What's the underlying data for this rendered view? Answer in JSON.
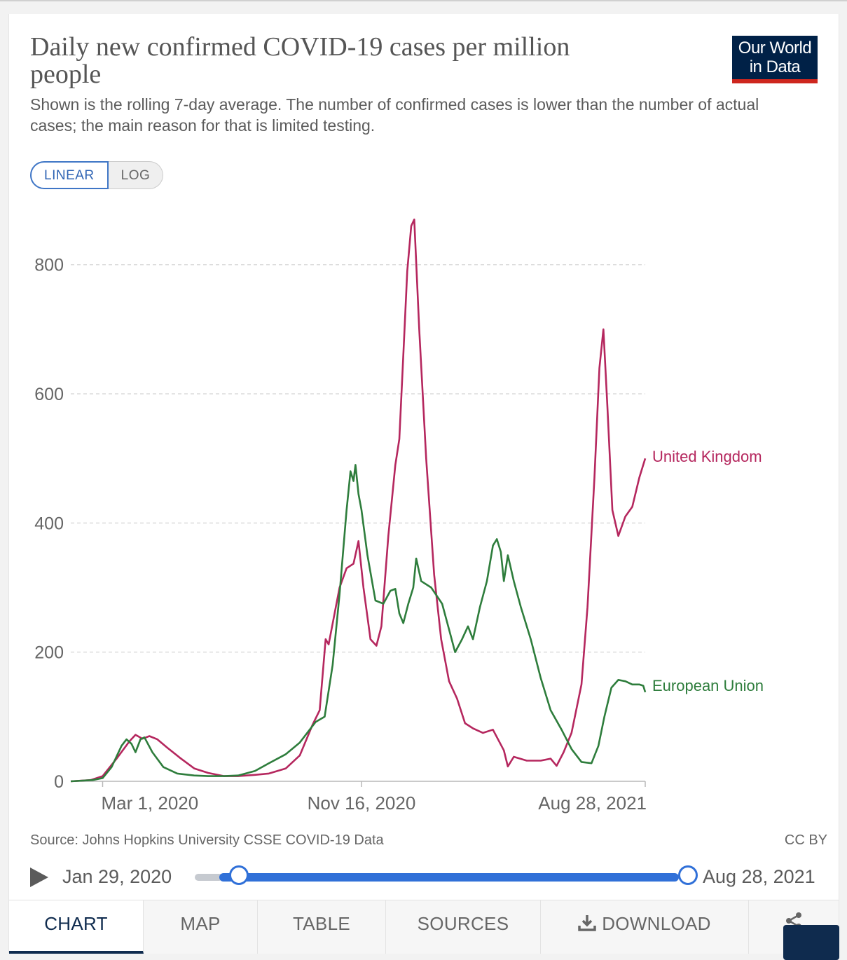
{
  "header": {
    "title": "Daily new confirmed COVID-19 cases per million people",
    "subtitle": "Shown is the rolling 7-day average. The number of confirmed cases is lower than the number of actual cases; the main reason for that is limited testing.",
    "logo_line1": "Our World",
    "logo_line2": "in Data"
  },
  "scale_toggle": {
    "linear_label": "LINEAR",
    "log_label": "LOG",
    "selected": "LINEAR"
  },
  "chart_data": {
    "type": "line",
    "x_axis": {
      "start": "2020-01-29",
      "end": "2021-08-28",
      "tick_labels": [
        "Mar 1, 2020",
        "Nov 16, 2020",
        "Aug 28, 2021"
      ],
      "tick_dates": [
        "2020-03-01",
        "2020-11-16",
        "2021-08-28"
      ]
    },
    "y_axis": {
      "ylim": [
        0,
        870
      ],
      "ticks": [
        0,
        200,
        400,
        600,
        800
      ]
    },
    "grid": "horizontal dashed",
    "legend": "line-end labels at right",
    "colors": {
      "United Kingdom": "#b5275e",
      "European Union": "#2e7d3c"
    },
    "series": [
      {
        "name": "United Kingdom",
        "points": [
          [
            "2020-01-29",
            0
          ],
          [
            "2020-02-18",
            2
          ],
          [
            "2020-03-01",
            8
          ],
          [
            "2020-03-15",
            35
          ],
          [
            "2020-03-28",
            62
          ],
          [
            "2020-04-03",
            72
          ],
          [
            "2020-04-10",
            66
          ],
          [
            "2020-04-17",
            70
          ],
          [
            "2020-04-25",
            65
          ],
          [
            "2020-05-05",
            52
          ],
          [
            "2020-05-18",
            36
          ],
          [
            "2020-06-01",
            20
          ],
          [
            "2020-06-15",
            13
          ],
          [
            "2020-07-01",
            8
          ],
          [
            "2020-07-15",
            8
          ],
          [
            "2020-08-01",
            10
          ],
          [
            "2020-08-15",
            12
          ],
          [
            "2020-09-01",
            20
          ],
          [
            "2020-09-15",
            40
          ],
          [
            "2020-09-28",
            88
          ],
          [
            "2020-10-05",
            110
          ],
          [
            "2020-10-11",
            220
          ],
          [
            "2020-10-14",
            212
          ],
          [
            "2020-10-25",
            300
          ],
          [
            "2020-11-01",
            330
          ],
          [
            "2020-11-08",
            337
          ],
          [
            "2020-11-13",
            372
          ],
          [
            "2020-11-18",
            300
          ],
          [
            "2020-11-25",
            220
          ],
          [
            "2020-12-01",
            210
          ],
          [
            "2020-12-06",
            240
          ],
          [
            "2020-12-13",
            380
          ],
          [
            "2020-12-20",
            490
          ],
          [
            "2020-12-24",
            530
          ],
          [
            "2020-12-28",
            660
          ],
          [
            "2021-01-01",
            790
          ],
          [
            "2021-01-05",
            860
          ],
          [
            "2021-01-08",
            870
          ],
          [
            "2021-01-13",
            700
          ],
          [
            "2021-01-20",
            500
          ],
          [
            "2021-01-28",
            320
          ],
          [
            "2021-02-04",
            220
          ],
          [
            "2021-02-12",
            155
          ],
          [
            "2021-02-20",
            128
          ],
          [
            "2021-02-28",
            90
          ],
          [
            "2021-03-08",
            82
          ],
          [
            "2021-03-18",
            75
          ],
          [
            "2021-03-28",
            80
          ],
          [
            "2021-04-08",
            48
          ],
          [
            "2021-04-12",
            23
          ],
          [
            "2021-04-18",
            38
          ],
          [
            "2021-05-01",
            32
          ],
          [
            "2021-05-15",
            32
          ],
          [
            "2021-05-25",
            35
          ],
          [
            "2021-05-31",
            24
          ],
          [
            "2021-06-07",
            45
          ],
          [
            "2021-06-15",
            75
          ],
          [
            "2021-06-25",
            150
          ],
          [
            "2021-07-01",
            270
          ],
          [
            "2021-07-08",
            470
          ],
          [
            "2021-07-13",
            640
          ],
          [
            "2021-07-17",
            700
          ],
          [
            "2021-07-21",
            580
          ],
          [
            "2021-07-26",
            420
          ],
          [
            "2021-08-01",
            380
          ],
          [
            "2021-08-08",
            410
          ],
          [
            "2021-08-15",
            425
          ],
          [
            "2021-08-22",
            470
          ],
          [
            "2021-08-28",
            500
          ]
        ]
      },
      {
        "name": "European Union",
        "points": [
          [
            "2020-01-29",
            0
          ],
          [
            "2020-02-20",
            2
          ],
          [
            "2020-03-01",
            5
          ],
          [
            "2020-03-10",
            22
          ],
          [
            "2020-03-20",
            55
          ],
          [
            "2020-03-25",
            65
          ],
          [
            "2020-03-30",
            58
          ],
          [
            "2020-04-03",
            45
          ],
          [
            "2020-04-08",
            65
          ],
          [
            "2020-04-12",
            68
          ],
          [
            "2020-04-20",
            45
          ],
          [
            "2020-05-01",
            22
          ],
          [
            "2020-05-15",
            12
          ],
          [
            "2020-06-01",
            9
          ],
          [
            "2020-06-15",
            8
          ],
          [
            "2020-07-01",
            8
          ],
          [
            "2020-07-15",
            9
          ],
          [
            "2020-08-01",
            16
          ],
          [
            "2020-08-15",
            28
          ],
          [
            "2020-09-01",
            42
          ],
          [
            "2020-09-15",
            60
          ],
          [
            "2020-10-01",
            92
          ],
          [
            "2020-10-10",
            100
          ],
          [
            "2020-10-18",
            180
          ],
          [
            "2020-10-25",
            290
          ],
          [
            "2020-11-01",
            420
          ],
          [
            "2020-11-05",
            480
          ],
          [
            "2020-11-08",
            465
          ],
          [
            "2020-11-10",
            490
          ],
          [
            "2020-11-13",
            445
          ],
          [
            "2020-11-16",
            420
          ],
          [
            "2020-11-22",
            350
          ],
          [
            "2020-11-30",
            280
          ],
          [
            "2020-12-08",
            275
          ],
          [
            "2020-12-15",
            295
          ],
          [
            "2020-12-20",
            298
          ],
          [
            "2020-12-24",
            260
          ],
          [
            "2020-12-28",
            245
          ],
          [
            "2021-01-02",
            275
          ],
          [
            "2021-01-07",
            300
          ],
          [
            "2021-01-10",
            345
          ],
          [
            "2021-01-15",
            310
          ],
          [
            "2021-01-25",
            300
          ],
          [
            "2021-02-05",
            275
          ],
          [
            "2021-02-12",
            235
          ],
          [
            "2021-02-18",
            200
          ],
          [
            "2021-02-25",
            220
          ],
          [
            "2021-03-03",
            240
          ],
          [
            "2021-03-08",
            220
          ],
          [
            "2021-03-15",
            270
          ],
          [
            "2021-03-22",
            310
          ],
          [
            "2021-03-28",
            365
          ],
          [
            "2021-04-01",
            375
          ],
          [
            "2021-04-05",
            355
          ],
          [
            "2021-04-08",
            310
          ],
          [
            "2021-04-12",
            350
          ],
          [
            "2021-04-18",
            310
          ],
          [
            "2021-04-25",
            270
          ],
          [
            "2021-05-05",
            220
          ],
          [
            "2021-05-15",
            160
          ],
          [
            "2021-05-25",
            110
          ],
          [
            "2021-06-05",
            80
          ],
          [
            "2021-06-15",
            50
          ],
          [
            "2021-06-25",
            30
          ],
          [
            "2021-07-05",
            28
          ],
          [
            "2021-07-12",
            55
          ],
          [
            "2021-07-18",
            100
          ],
          [
            "2021-07-25",
            145
          ],
          [
            "2021-08-01",
            157
          ],
          [
            "2021-08-08",
            155
          ],
          [
            "2021-08-15",
            150
          ],
          [
            "2021-08-22",
            150
          ],
          [
            "2021-08-26",
            148
          ],
          [
            "2021-08-28",
            138
          ]
        ]
      }
    ]
  },
  "footer": {
    "source": "Source: Johns Hopkins University CSSE COVID-19 Data",
    "license": "CC BY"
  },
  "timeline": {
    "start_label": "Jan 29, 2020",
    "end_label": "Aug 28, 2021",
    "selection_start": 0.02,
    "selection_end": 1.0
  },
  "tabs": [
    {
      "label": "CHART",
      "active": true
    },
    {
      "label": "MAP",
      "active": false
    },
    {
      "label": "TABLE",
      "active": false
    },
    {
      "label": "SOURCES",
      "active": false
    },
    {
      "label": "DOWNLOAD",
      "active": false
    }
  ]
}
